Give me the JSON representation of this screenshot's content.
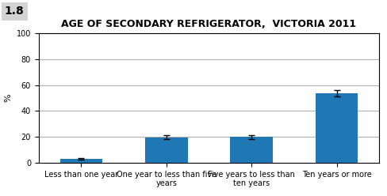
{
  "chart_data": {
    "type": "bar",
    "title": "AGE OF SECONDARY REFRIGERATOR,  VICTORIA 2011",
    "annotations": [
      "1.8"
    ],
    "ylabel": "%",
    "categories": [
      "Less than one year",
      "One year to less than five\nyears",
      "Five years to less than\nten years",
      "Ten years or more"
    ],
    "values": [
      3.0,
      19.5,
      20.0,
      53.5
    ],
    "errors": [
      0.8,
      1.5,
      1.5,
      2.5
    ],
    "ylim": [
      0,
      100
    ],
    "yticks": [
      0,
      20,
      40,
      60,
      80,
      100
    ],
    "grid": true
  }
}
